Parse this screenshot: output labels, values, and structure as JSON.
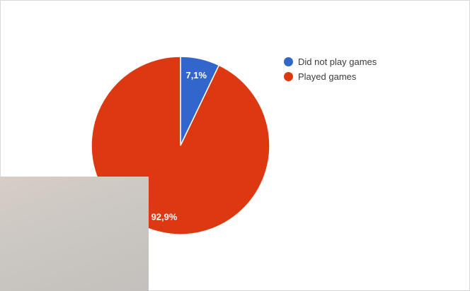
{
  "chart_data": {
    "type": "pie",
    "slices": [
      {
        "label": "Did not play games",
        "value": 7.1,
        "display": "7,1%",
        "color": "#3366cc"
      },
      {
        "label": "Played games",
        "value": 92.9,
        "display": "92,9%",
        "color": "#dc3912"
      }
    ],
    "legend_position": "right"
  },
  "legend": {
    "items": [
      {
        "label": "Did not play games",
        "color": "#3366cc"
      },
      {
        "label": "Played games",
        "color": "#dc3912"
      }
    ]
  }
}
